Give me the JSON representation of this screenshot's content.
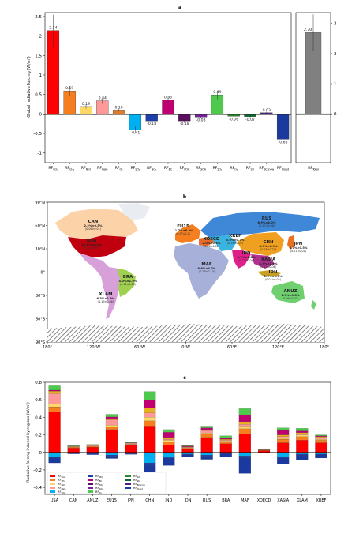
{
  "panel_a": {
    "letter": "a",
    "ylabel": "Global radiative forcing (W/m²)",
    "yticks": [
      -1,
      -0.5,
      0,
      0.5,
      1,
      1.5,
      2,
      2.5
    ],
    "total_yticks": [
      0,
      1,
      2,
      3
    ],
    "bar_colors": [
      "#ff0000",
      "#f57f1f",
      "#ffd966",
      "#ff9999",
      "#e07b2a",
      "#00b0f0",
      "#1f3fa8",
      "#c00070",
      "#5b0f60",
      "#7a1fa0",
      "#4ec94e",
      "#2a8a2a",
      "#0a6a30",
      "#4a2080",
      "#1a3aa0"
    ],
    "total_color": "#808080"
  },
  "panel_b": {
    "letter": "b",
    "lat_labels": [
      "90°N",
      "60°N",
      "30°N",
      "0°",
      "30°S",
      "60°S",
      "90°S"
    ],
    "lon_labels": [
      "180°",
      "120°W",
      "60°W",
      "0°W",
      "60°E",
      "120°E",
      "180°"
    ],
    "regions": [
      {
        "name": "CAN",
        "value": "2.2%±0.5%",
        "abs": "(0.06±0.01)",
        "color": "#fcd2a8"
      },
      {
        "name": "USA",
        "value": "19.9%±6.1%",
        "abs": "(0.61±0.19)",
        "color": "#c0000e"
      },
      {
        "name": "EU15",
        "value": "11.7%±6.2%",
        "abs": "(0.37±0.2)",
        "color": "#f57f1f"
      },
      {
        "name": "XOECD",
        "value": "2.0%±0.6%",
        "abs": "(0.06±0.02)",
        "color": "#e66b2a"
      },
      {
        "name": "RUS",
        "value": "8.9%±2.0%",
        "abs": "(0.27±0.06)",
        "color": "#3f88d8"
      },
      {
        "name": "XREF",
        "value": "5.6%±0.7%",
        "abs": "(0.18±0.02)",
        "color": "#3ab3e0"
      },
      {
        "name": "CHN",
        "value": "8.9%±6.9%",
        "abs": "(0.28±0.21)",
        "color": "#f0a020"
      },
      {
        "name": "JPN",
        "value": "3.7%±0.5%",
        "abs": "(0.11±0.01)",
        "color": "#e87020"
      },
      {
        "name": "IND",
        "value": "3.7%±1.8%",
        "abs": "(0.12±0.06)",
        "color": "#e0208a"
      },
      {
        "name": "XASIA",
        "value": "4.9%±1.9%",
        "abs": "(0.15±0.06)",
        "color": "#b03090"
      },
      {
        "name": "IDN",
        "value": "1.5%±0.6%",
        "abs": "(0.04±0.02)",
        "color": "#c8a020"
      },
      {
        "name": "ANUZ",
        "value": "1.9%±0.8%",
        "abs": "(0.06±0.02)",
        "color": "#70d070"
      },
      {
        "name": "MAF",
        "value": "8.6%±4.7%",
        "abs": "(0.26±0.13)",
        "color": "#a6b0d8"
      },
      {
        "name": "BRA",
        "value": "4.0%±1.6%",
        "abs": "(0.12±0.05)",
        "color": "#a0d050"
      },
      {
        "name": "XLAM",
        "value": "6.3%±1.9%",
        "abs": "(0.19±0.06)",
        "color": "#d8a0d8"
      }
    ]
  },
  "panel_c": {
    "letter": "c",
    "ylabel": "Radiative forcing induced by regions (W/m²)",
    "yticks": [
      -0.4,
      -0.2,
      0,
      0.2,
      0.4,
      0.6,
      0.8
    ],
    "legend_colors": [
      "#ff0000",
      "#f57f1f",
      "#ffd966",
      "#ff9999",
      "#00b0f0",
      "#1f3fa8",
      "#c00070",
      "#5b0f60",
      "#7a1fa0",
      "#4ec94e",
      "#2a8a2a",
      "#0a6a30",
      "#4a2080",
      "#1a3aa0"
    ]
  },
  "chart_data": [
    {
      "type": "bar",
      "title": "a",
      "ylabel": "Global radiative forcing (W/m²)",
      "ylim": [
        -1.25,
        2.6
      ],
      "categories": [
        "RF_CO2",
        "RF_CH4",
        "RF_N2O",
        "RF_Halo",
        "RF_O3",
        "RF_SO4",
        "RF_NO3",
        "RF_BC",
        "RF_POA",
        "RF_SOA",
        "RF_SO2",
        "RF_O3",
        "RF_Str",
        "RF_BCsnow",
        "RF_Cloud"
      ],
      "values": [
        2.14,
        0.59,
        0.19,
        0.34,
        0.1,
        -0.41,
        -0.18,
        0.36,
        -0.18,
        -0.08,
        0.49,
        -0.06,
        -0.07,
        0.03,
        -0.65
      ],
      "value_labels": [
        "2.14",
        "0.59",
        "0.19",
        "0.34",
        "0.10",
        "-0.41",
        "-0.18",
        "0.36",
        "-0.18",
        "-0.08",
        "0.49",
        "-0.06",
        "-0.07",
        "0.03",
        "-0.65"
      ]
    },
    {
      "type": "bar",
      "categories": [
        "RF_Total"
      ],
      "values": [
        2.7
      ],
      "value_labels": [
        "2.70"
      ],
      "ylim": [
        -1.62,
        3.36
      ]
    },
    {
      "type": "bar",
      "title": "c",
      "ylabel": "Radiative forcing induced by regions (W/m²)",
      "ylim": [
        -0.48,
        0.8
      ],
      "categories": [
        "USA",
        "CAN",
        "ANUZ",
        "EU15",
        "JPN",
        "CHN",
        "IND",
        "IDN",
        "RUS",
        "BRA",
        "MAF",
        "XOECD",
        "XASIA",
        "XLAM",
        "XREF"
      ],
      "series": [
        {
          "name": "RF_CO2",
          "values": [
            0.46,
            0.05,
            0.06,
            0.26,
            0.08,
            0.3,
            0.08,
            0.04,
            0.17,
            0.1,
            0.21,
            0.02,
            0.11,
            0.14,
            0.11
          ]
        },
        {
          "name": "RF_CH4",
          "values": [
            0.06,
            0.01,
            0.01,
            0.03,
            0.01,
            0.06,
            0.04,
            0.01,
            0.04,
            0.02,
            0.06,
            0.005,
            0.04,
            0.04,
            0.03
          ]
        },
        {
          "name": "RF_N2O",
          "values": [
            0.03,
            0.003,
            0.003,
            0.02,
            0.004,
            0.04,
            0.02,
            0.005,
            0.01,
            0.01,
            0.03,
            0.002,
            0.01,
            0.02,
            0.01
          ]
        },
        {
          "name": "RF_Halo",
          "values": [
            0.12,
            0.004,
            0.01,
            0.06,
            0.01,
            0.05,
            0.01,
            0.003,
            0.03,
            0.01,
            0.02,
            0.003,
            0.02,
            0.01,
            0.02
          ]
        },
        {
          "name": "RF_O3",
          "values": [
            0.03,
            0.003,
            0.002,
            0.015,
            0.003,
            0.055,
            0.02,
            0.006,
            0.01,
            0.01,
            0.03,
            0.002,
            0.02,
            0.015,
            0.01
          ]
        },
        {
          "name": "RF_BC",
          "values": [
            0.01,
            0.002,
            0.001,
            0.02,
            0.003,
            0.09,
            0.06,
            0.01,
            0.02,
            0.01,
            0.08,
            0.001,
            0.05,
            0.02,
            0.01
          ]
        },
        {
          "name": "RF_SO2",
          "values": [
            0.05,
            0.005,
            0.005,
            0.03,
            0.005,
            0.1,
            0.03,
            0.01,
            0.02,
            0.03,
            0.07,
            0.003,
            0.03,
            0.03,
            0.01
          ]
        },
        {
          "name": "RF_SO4",
          "values": [
            -0.05,
            -0.005,
            -0.004,
            -0.03,
            -0.01,
            -0.12,
            -0.06,
            -0.02,
            -0.03,
            -0.01,
            -0.04,
            -0.003,
            -0.05,
            -0.02,
            -0.02
          ]
        },
        {
          "name": "RF_NO3",
          "values": [
            -0.01,
            -0.002,
            -0.002,
            -0.01,
            -0.003,
            -0.03,
            -0.01,
            -0.003,
            -0.01,
            -0.005,
            -0.02,
            -0.001,
            -0.01,
            -0.01,
            -0.005
          ]
        },
        {
          "name": "RF_Cloud",
          "values": [
            -0.06,
            -0.01,
            -0.02,
            -0.03,
            -0.01,
            -0.3,
            -0.08,
            -0.03,
            -0.04,
            -0.04,
            -0.18,
            -0.005,
            -0.07,
            -0.06,
            -0.04
          ]
        }
      ]
    }
  ]
}
